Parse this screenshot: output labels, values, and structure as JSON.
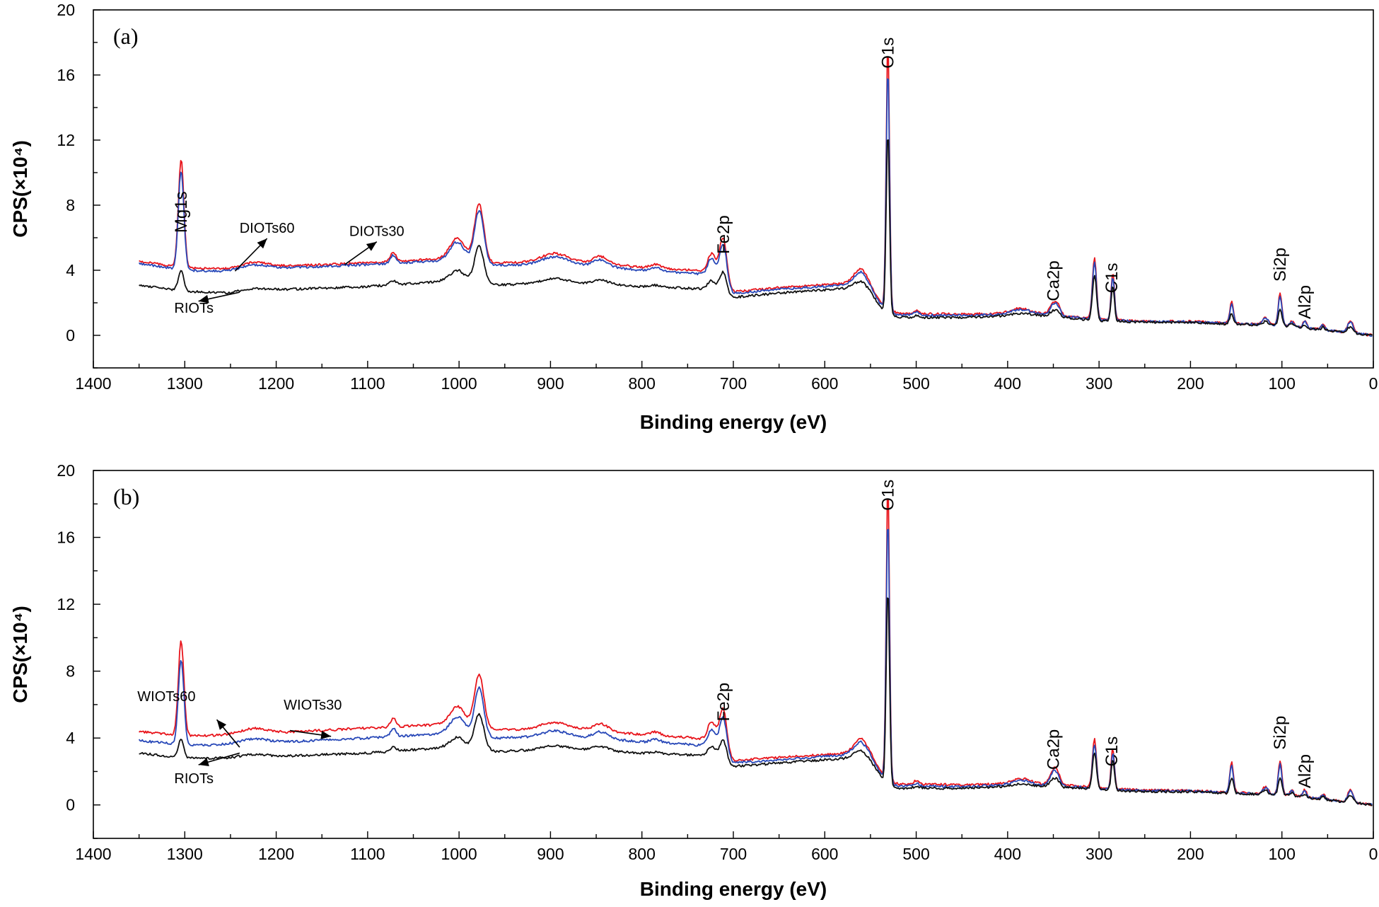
{
  "chart_data": [
    {
      "type": "line",
      "panel_label": "(a)",
      "xlabel": "Binding energy (eV)",
      "ylabel": "CPS(×10⁴)",
      "xlim": [
        1400,
        0
      ],
      "ylim": [
        -2,
        20
      ],
      "x_reversed": true,
      "x_ticks": [
        1400,
        1300,
        1200,
        1100,
        1000,
        900,
        800,
        700,
        600,
        500,
        400,
        300,
        200,
        100,
        0
      ],
      "y_ticks": [
        0,
        4,
        8,
        12,
        16,
        20
      ],
      "grid": false,
      "legend": "none",
      "colors": {
        "red": "#e8141b",
        "blue": "#2848b8",
        "black": "#111111"
      },
      "baseline": [
        [
          1350,
          3.1
        ],
        [
          1300,
          2.7
        ],
        [
          1250,
          2.6
        ],
        [
          1200,
          2.8
        ],
        [
          1150,
          2.9
        ],
        [
          1100,
          3.0
        ],
        [
          1050,
          3.2
        ],
        [
          1000,
          3.4
        ],
        [
          960,
          3.1
        ],
        [
          900,
          3.2
        ],
        [
          850,
          3.2
        ],
        [
          800,
          3.0
        ],
        [
          750,
          2.9
        ],
        [
          720,
          2.8
        ],
        [
          705,
          2.3
        ],
        [
          650,
          2.6
        ],
        [
          600,
          2.8
        ],
        [
          570,
          2.9
        ],
        [
          560,
          2.9
        ],
        [
          550,
          2.5
        ],
        [
          540,
          1.8
        ],
        [
          533,
          1.4
        ],
        [
          520,
          1.1
        ],
        [
          450,
          1.1
        ],
        [
          400,
          1.2
        ],
        [
          360,
          1.2
        ],
        [
          320,
          1.0
        ],
        [
          300,
          0.9
        ],
        [
          250,
          0.8
        ],
        [
          200,
          0.8
        ],
        [
          160,
          0.7
        ],
        [
          100,
          0.6
        ],
        [
          50,
          0.3
        ],
        [
          0,
          0.0
        ]
      ],
      "peaks": [
        [
          1304,
          6.1,
          3.0
        ],
        [
          1225,
          0.3,
          15
        ],
        [
          1072,
          0.5,
          3
        ],
        [
          1002,
          1.1,
          8
        ],
        [
          978,
          3.2,
          5
        ],
        [
          895,
          0.5,
          15
        ],
        [
          845,
          0.4,
          8
        ],
        [
          785,
          0.2,
          6
        ],
        [
          724,
          1.0,
          4
        ],
        [
          711,
          2.5,
          4
        ],
        [
          560,
          0.8,
          8
        ],
        [
          531,
          15.0,
          1.8
        ],
        [
          500,
          0.2,
          3
        ],
        [
          385,
          0.3,
          10
        ],
        [
          350,
          0.6,
          4
        ],
        [
          345,
          0.4,
          3
        ],
        [
          305,
          3.5,
          2.2
        ],
        [
          285,
          2.7,
          1.8
        ],
        [
          155,
          1.2,
          2
        ],
        [
          118,
          0.4,
          3
        ],
        [
          102,
          1.8,
          2
        ],
        [
          89,
          0.3,
          2
        ],
        [
          75,
          0.4,
          2
        ],
        [
          55,
          0.3,
          2
        ],
        [
          25,
          0.7,
          3
        ]
      ],
      "series": [
        {
          "color": "#e8141b",
          "offset": [
            [
              1350,
              1.45
            ],
            [
              1100,
              1.45
            ],
            [
              960,
              1.35
            ],
            [
              720,
              1.1
            ],
            [
              700,
              0.35
            ],
            [
              560,
              0.3
            ],
            [
              520,
              0.25
            ],
            [
              300,
              0.08
            ],
            [
              0,
              0.0
            ]
          ],
          "peak_scale": 1.09
        },
        {
          "color": "#2848b8",
          "offset": [
            [
              1350,
              1.3
            ],
            [
              1100,
              1.35
            ],
            [
              960,
              1.2
            ],
            [
              720,
              0.9
            ],
            [
              700,
              0.25
            ],
            [
              560,
              0.2
            ],
            [
              520,
              0.15
            ],
            [
              300,
              0.05
            ],
            [
              0,
              0.0
            ]
          ],
          "peak_scale": 1.0
        },
        {
          "color": "#111111",
          "offset": [
            [
              1350,
              0.0
            ],
            [
              0,
              0.0
            ]
          ],
          "peak_scale": 0.55,
          "peak_scale_map": {
            "1304": 0.2,
            "531": 0.75,
            "305": 0.8,
            "285": 0.8,
            "978": 0.7
          }
        }
      ],
      "peak_labels": [
        {
          "text": "Mg1s",
          "x": 1304,
          "y": 6.3
        },
        {
          "text": "Fe2p",
          "x": 711,
          "y": 5.0
        },
        {
          "text": "O1s",
          "x": 531,
          "y": 16.4
        },
        {
          "text": "Ca2p",
          "x": 350,
          "y": 2.1
        },
        {
          "text": "C1s",
          "x": 286,
          "y": 2.6
        },
        {
          "text": "Si2p",
          "x": 102,
          "y": 3.3
        },
        {
          "text": "Al2p",
          "x": 75,
          "y": 1.0
        }
      ],
      "sample_labels": [
        {
          "text": "DIOTs60",
          "x": 1210,
          "y": 6.3,
          "arrow_to": [
            1245,
            3.95
          ]
        },
        {
          "text": "DIOTs30",
          "x": 1090,
          "y": 6.1,
          "arrow_to": [
            1125,
            4.35
          ]
        },
        {
          "text": "RIOTs",
          "x": 1290,
          "y": 1.4,
          "arrow_to": [
            1240,
            2.65
          ],
          "arrow_from": [
            1285,
            2.1
          ]
        }
      ]
    },
    {
      "type": "line",
      "panel_label": "(b)",
      "xlabel": "Binding energy (eV)",
      "ylabel": "CPS(×10⁴)",
      "xlim": [
        1400,
        0
      ],
      "ylim": [
        -2,
        20
      ],
      "x_reversed": true,
      "x_ticks": [
        1400,
        1300,
        1200,
        1100,
        1000,
        900,
        800,
        700,
        600,
        500,
        400,
        300,
        200,
        100,
        0
      ],
      "y_ticks": [
        0,
        4,
        8,
        12,
        16,
        20
      ],
      "grid": false,
      "legend": "none",
      "colors": {
        "red": "#e8141b",
        "blue": "#2848b8",
        "black": "#111111"
      },
      "baseline": [
        [
          1350,
          3.1
        ],
        [
          1300,
          2.8
        ],
        [
          1250,
          2.8
        ],
        [
          1200,
          2.9
        ],
        [
          1150,
          3.0
        ],
        [
          1100,
          3.1
        ],
        [
          1050,
          3.3
        ],
        [
          1000,
          3.5
        ],
        [
          960,
          3.2
        ],
        [
          900,
          3.3
        ],
        [
          850,
          3.3
        ],
        [
          800,
          3.1
        ],
        [
          750,
          3.0
        ],
        [
          720,
          2.9
        ],
        [
          705,
          2.3
        ],
        [
          650,
          2.5
        ],
        [
          600,
          2.7
        ],
        [
          570,
          2.8
        ],
        [
          560,
          2.8
        ],
        [
          550,
          2.5
        ],
        [
          540,
          1.8
        ],
        [
          533,
          1.3
        ],
        [
          520,
          1.0
        ],
        [
          450,
          1.0
        ],
        [
          400,
          1.1
        ],
        [
          360,
          1.1
        ],
        [
          320,
          1.0
        ],
        [
          300,
          0.9
        ],
        [
          250,
          0.8
        ],
        [
          200,
          0.8
        ],
        [
          160,
          0.7
        ],
        [
          100,
          0.6
        ],
        [
          50,
          0.3
        ],
        [
          0,
          0.0
        ]
      ],
      "peaks": [
        [
          1304,
          5.4,
          3.0
        ],
        [
          1225,
          0.3,
          15
        ],
        [
          1072,
          0.5,
          3
        ],
        [
          1002,
          1.0,
          8
        ],
        [
          978,
          3.0,
          5
        ],
        [
          895,
          0.4,
          15
        ],
        [
          845,
          0.4,
          8
        ],
        [
          785,
          0.2,
          6
        ],
        [
          724,
          1.0,
          4
        ],
        [
          711,
          2.4,
          4
        ],
        [
          560,
          0.8,
          8
        ],
        [
          531,
          16.8,
          1.8
        ],
        [
          500,
          0.2,
          3
        ],
        [
          385,
          0.3,
          10
        ],
        [
          350,
          0.8,
          4
        ],
        [
          345,
          0.4,
          3
        ],
        [
          305,
          2.8,
          2.2
        ],
        [
          285,
          2.3,
          1.8
        ],
        [
          155,
          1.7,
          2
        ],
        [
          118,
          0.4,
          3
        ],
        [
          102,
          1.9,
          2
        ],
        [
          89,
          0.3,
          2
        ],
        [
          75,
          0.4,
          2
        ],
        [
          55,
          0.3,
          2
        ],
        [
          25,
          0.7,
          3
        ]
      ],
      "series": [
        {
          "color": "#e8141b",
          "offset": [
            [
              1350,
              1.3
            ],
            [
              1100,
              1.5
            ],
            [
              960,
              1.3
            ],
            [
              720,
              1.0
            ],
            [
              700,
              0.35
            ],
            [
              560,
              0.3
            ],
            [
              520,
              0.25
            ],
            [
              300,
              0.1
            ],
            [
              0,
              0.0
            ]
          ],
          "peak_scale": 1.05
        },
        {
          "color": "#2848b8",
          "offset": [
            [
              1350,
              0.75
            ],
            [
              1100,
              0.9
            ],
            [
              960,
              0.8
            ],
            [
              720,
              0.6
            ],
            [
              700,
              0.2
            ],
            [
              560,
              0.2
            ],
            [
              520,
              0.12
            ],
            [
              300,
              0.05
            ],
            [
              0,
              0.0
            ]
          ],
          "peak_scale": 0.95
        },
        {
          "color": "#111111",
          "offset": [
            [
              1350,
              0.0
            ],
            [
              0,
              0.0
            ]
          ],
          "peak_scale": 0.55,
          "peak_scale_map": {
            "1304": 0.2,
            "531": 0.7,
            "305": 0.8,
            "285": 0.8,
            "978": 0.7
          }
        }
      ],
      "peak_labels": [
        {
          "text": "Fe2p",
          "x": 711,
          "y": 5.0
        },
        {
          "text": "O1s",
          "x": 531,
          "y": 17.6
        },
        {
          "text": "Ca2p",
          "x": 350,
          "y": 2.1
        },
        {
          "text": "C1s",
          "x": 286,
          "y": 2.3
        },
        {
          "text": "Si2p",
          "x": 102,
          "y": 3.3
        },
        {
          "text": "Al2p",
          "x": 75,
          "y": 1.0
        }
      ],
      "sample_labels": [
        {
          "text": "WIOTs60",
          "x": 1320,
          "y": 6.2,
          "arrow_to": [
            1240,
            3.45
          ],
          "arrow_from": [
            1265,
            5.1
          ]
        },
        {
          "text": "WIOTs30",
          "x": 1160,
          "y": 5.7,
          "arrow_to": [
            1185,
            4.45
          ],
          "arrow_from": [
            1140,
            4.1
          ]
        },
        {
          "text": "RIOTs",
          "x": 1290,
          "y": 1.3,
          "arrow_to": [
            1240,
            3.1
          ],
          "arrow_from": [
            1285,
            2.4
          ]
        }
      ]
    }
  ]
}
